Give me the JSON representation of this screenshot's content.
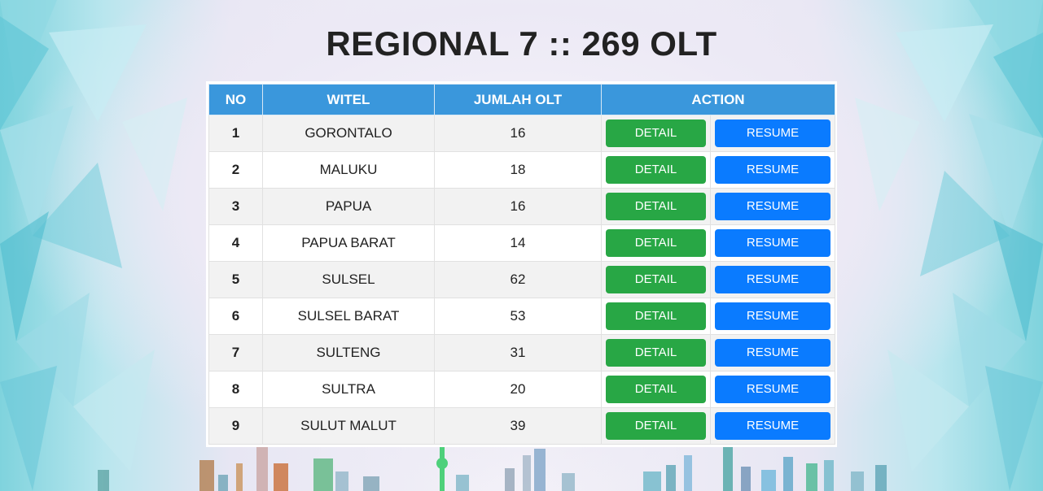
{
  "page": {
    "title": "REGIONAL 7 :: 269 OLT"
  },
  "table": {
    "headers": {
      "no": "NO",
      "witel": "WITEL",
      "jumlah": "JUMLAH OLT",
      "action": "ACTION"
    },
    "rows": [
      {
        "no": "1",
        "witel": "GORONTALO",
        "jumlah": "16",
        "detail": "DETAIL",
        "resume": "RESUME"
      },
      {
        "no": "2",
        "witel": "MALUKU",
        "jumlah": "18",
        "detail": "DETAIL",
        "resume": "RESUME"
      },
      {
        "no": "3",
        "witel": "PAPUA",
        "jumlah": "16",
        "detail": "DETAIL",
        "resume": "RESUME"
      },
      {
        "no": "4",
        "witel": "PAPUA BARAT",
        "jumlah": "14",
        "detail": "DETAIL",
        "resume": "RESUME"
      },
      {
        "no": "5",
        "witel": "SULSEL",
        "jumlah": "62",
        "detail": "DETAIL",
        "resume": "RESUME"
      },
      {
        "no": "6",
        "witel": "SULSEL BARAT",
        "jumlah": "53",
        "detail": "DETAIL",
        "resume": "RESUME"
      },
      {
        "no": "7",
        "witel": "SULTENG",
        "jumlah": "31",
        "detail": "DETAIL",
        "resume": "RESUME"
      },
      {
        "no": "8",
        "witel": "SULTRA",
        "jumlah": "20",
        "detail": "DETAIL",
        "resume": "RESUME"
      },
      {
        "no": "9",
        "witel": "SULUT MALUT",
        "jumlah": "39",
        "detail": "DETAIL",
        "resume": "RESUME"
      }
    ]
  },
  "colors": {
    "header": "#3a97dc",
    "detail_button": "#28a745",
    "resume_button": "#0a7bff"
  }
}
